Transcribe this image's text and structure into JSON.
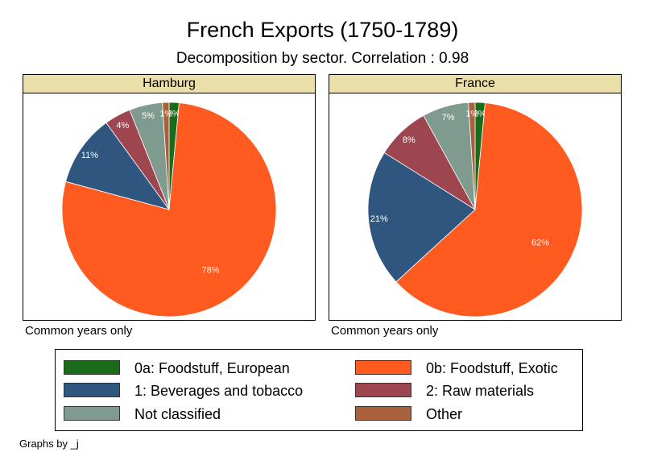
{
  "chart_data": {
    "type": "pie",
    "title": "French Exports (1750-1789)",
    "subtitle": "Decomposition by sector. Correlation : 0.98",
    "note": "Common years only",
    "byline": "Graphs by _j",
    "legend_position": "bottom",
    "categories": [
      "0a: Foodstuff, European",
      "0b: Foodstuff, Exotic",
      "1: Beverages and tobacco",
      "2: Raw materials",
      "Not classified",
      "Other"
    ],
    "colors": [
      "#1a6b1a",
      "#ff5a1f",
      "#2f567f",
      "#9e4650",
      "#7f9a8e",
      "#a8613c"
    ],
    "panels": [
      {
        "name": "Hamburg",
        "values": [
          1.5,
          77.7,
          10.8,
          4.0,
          5.0,
          1.0
        ],
        "labels": [
          "2%",
          "78%",
          "11%",
          "4%",
          "5%",
          "1%"
        ]
      },
      {
        "name": "France",
        "values": [
          1.5,
          61.7,
          20.7,
          8.1,
          7.0,
          1.0
        ],
        "labels": [
          "2%",
          "62%",
          "21%",
          "8%",
          "7%",
          "1%"
        ]
      }
    ]
  }
}
